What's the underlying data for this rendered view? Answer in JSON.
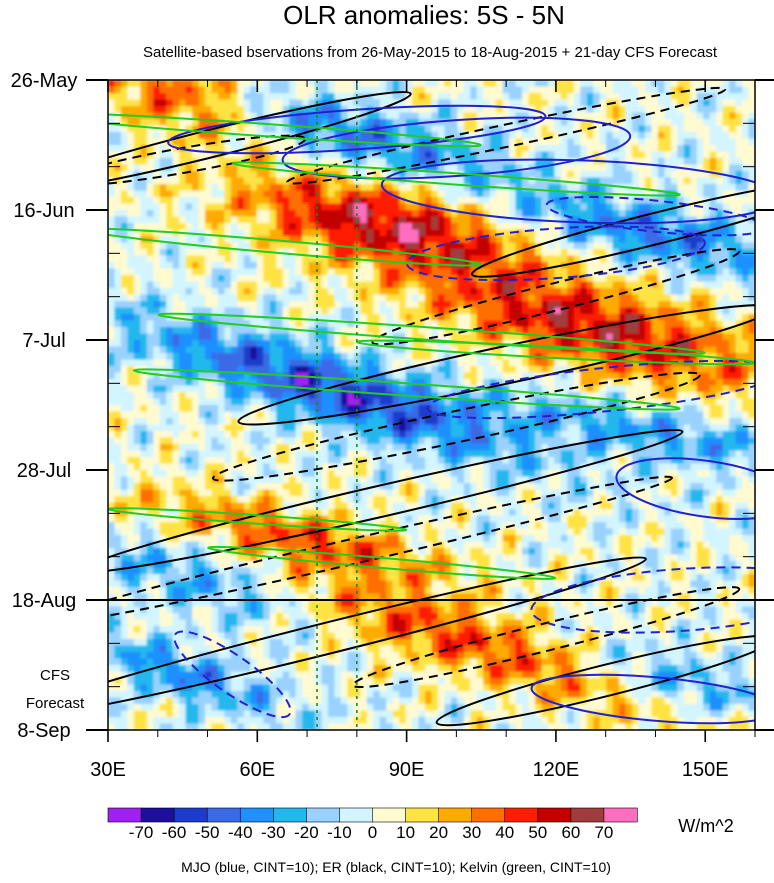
{
  "chart_data": {
    "type": "heatmap",
    "title": "OLR anomalies: 5S - 5N",
    "subtitle": "Satellite-based bservations from 26-May-2015 to 18-Aug-2015 + 21-day CFS Forecast",
    "x_axis": {
      "range": [
        30,
        160
      ],
      "ticks": [
        30,
        60,
        90,
        120,
        150
      ],
      "tick_labels": [
        "30E",
        "60E",
        "90E",
        "120E",
        "150E"
      ]
    },
    "y_axis": {
      "date_labels": [
        "26-May",
        "16-Jun",
        "7-Jul",
        "28-Jul",
        "18-Aug",
        "8-Sep"
      ],
      "day_offsets": [
        0,
        21,
        42,
        63,
        84,
        105
      ],
      "total_days": 105
    },
    "forecast_label": [
      "CFS",
      "Forecast"
    ],
    "forecast_start_day": 84,
    "reference_longitudes": [
      72,
      80
    ],
    "colorbar": {
      "unit": "W/m^2",
      "levels": [
        -70,
        -60,
        -50,
        -40,
        -30,
        -20,
        -10,
        0,
        10,
        20,
        30,
        40,
        50,
        60,
        70
      ],
      "level_labels": [
        "-70",
        "-60",
        "-50",
        "-40",
        "-30",
        "-20",
        "-10",
        "0",
        "10",
        "20",
        "30",
        "40",
        "50",
        "60",
        "70"
      ],
      "colors": [
        "#a020f0",
        "#1c0f9e",
        "#1e3ccc",
        "#3a6ae6",
        "#1e90ff",
        "#22b8ee",
        "#9ad2ff",
        "#d2f5ff",
        "#fffad0",
        "#ffe342",
        "#ffaa00",
        "#ff6e00",
        "#ff1e00",
        "#c30000",
        "#a03c3c",
        "#ff6ebe"
      ]
    },
    "anomaly_bands": [
      {
        "name": "enh-a",
        "day0": 2,
        "lon0": 45,
        "slope": 0.22,
        "w": 9,
        "hw": 14,
        "v": 55
      },
      {
        "name": "enh-b",
        "day0": 23,
        "lon0": 85,
        "slope": 0.15,
        "w": 9,
        "hw": 20,
        "v": 58
      },
      {
        "name": "enh-c",
        "day0": 40,
        "lon0": 128,
        "slope": 0.2,
        "w": 10,
        "hw": 26,
        "v": 55
      },
      {
        "name": "enh-d",
        "day0": 74,
        "lon0": 70,
        "slope": 0.2,
        "w": 6,
        "hw": 22,
        "v": 38
      },
      {
        "name": "enh-e",
        "day0": 90,
        "lon0": 100,
        "slope": 0.25,
        "w": 8,
        "hw": 40,
        "v": 42
      },
      {
        "name": "sup-a",
        "day0": 8,
        "lon0": 75,
        "slope": 0.2,
        "w": 7,
        "hw": 25,
        "v": -42
      },
      {
        "name": "sup-b",
        "day0": 25,
        "lon0": 140,
        "slope": 0.15,
        "w": 7,
        "hw": 20,
        "v": -40
      },
      {
        "name": "sup-c",
        "day0": 50,
        "lon0": 75,
        "slope": 0.25,
        "w": 8,
        "hw": 28,
        "v": -55
      },
      {
        "name": "sup-d",
        "day0": 57,
        "lon0": 140,
        "slope": 0.15,
        "w": 6,
        "hw": 25,
        "v": -30
      },
      {
        "name": "sup-e",
        "day0": 80,
        "lon0": 50,
        "slope": 0.2,
        "w": 8,
        "hw": 18,
        "v": -38
      },
      {
        "name": "sup-f",
        "day0": 96,
        "lon0": 45,
        "slope": 0.25,
        "w": 6,
        "hw": 15,
        "v": -35
      },
      {
        "name": "sup-g",
        "day0": 98,
        "lon0": 145,
        "slope": 0.2,
        "w": 7,
        "hw": 15,
        "v": -35
      }
    ],
    "contour_legend": "MJO (blue, CINT=10); ER (black, CINT=10); Kelvin (green, CINT=10)",
    "contours": {
      "mjo": {
        "color": "#2222cc",
        "loops": [
          {
            "lon": 80,
            "day": 8,
            "rx": 38,
            "ry": 3.2,
            "tilt": -4,
            "dash": false
          },
          {
            "lon": 100,
            "day": 11,
            "rx": 35,
            "ry": 4.5,
            "tilt": -4,
            "dash": false
          },
          {
            "lon": 125,
            "day": 18,
            "rx": 40,
            "ry": 5,
            "tilt": 2,
            "dash": false
          },
          {
            "lon": 120,
            "day": 28,
            "rx": 30,
            "ry": 4,
            "tilt": -4,
            "dash": true
          },
          {
            "lon": 140,
            "day": 22,
            "rx": 22,
            "ry": 2.5,
            "tilt": 6,
            "dash": true
          },
          {
            "lon": 130,
            "day": 50,
            "rx": 36,
            "ry": 3.5,
            "tilt": -6,
            "dash": true
          },
          {
            "lon": 150,
            "day": 66,
            "rx": 18,
            "ry": 4.5,
            "tilt": 8,
            "dash": false
          },
          {
            "lon": 145,
            "day": 84,
            "rx": 30,
            "ry": 5,
            "tilt": -4,
            "dash": true
          },
          {
            "lon": 140,
            "day": 100,
            "rx": 25,
            "ry": 3.5,
            "tilt": 5,
            "dash": false
          },
          {
            "lon": 55,
            "day": 96,
            "rx": 14,
            "ry": 3,
            "tilt": 35,
            "dash": true
          }
        ]
      },
      "er": {
        "color": "#000000",
        "loops": [
          {
            "lon": 52,
            "day": 10,
            "rx": 40,
            "ry": 2.2,
            "tilt": -14,
            "dash": false
          },
          {
            "lon": 45,
            "day": 13,
            "rx": 25,
            "ry": 2,
            "tilt": -10,
            "dash": true
          },
          {
            "lon": 110,
            "day": 9,
            "rx": 45,
            "ry": 1.8,
            "tilt": -12,
            "dash": true
          },
          {
            "lon": 140,
            "day": 24,
            "rx": 38,
            "ry": 2.5,
            "tilt": -14,
            "dash": false
          },
          {
            "lon": 120,
            "day": 35,
            "rx": 38,
            "ry": 2.2,
            "tilt": -14,
            "dash": true
          },
          {
            "lon": 110,
            "day": 46,
            "rx": 55,
            "ry": 3,
            "tilt": -12,
            "dash": false
          },
          {
            "lon": 100,
            "day": 56,
            "rx": 50,
            "ry": 2.5,
            "tilt": -12,
            "dash": true
          },
          {
            "lon": 85,
            "day": 68,
            "rx": 62,
            "ry": 2.5,
            "tilt": -13,
            "dash": false
          },
          {
            "lon": 80,
            "day": 76,
            "rx": 65,
            "ry": 2,
            "tilt": -13,
            "dash": true
          },
          {
            "lon": 75,
            "day": 90,
            "rx": 65,
            "ry": 2.5,
            "tilt": -14,
            "dash": false
          },
          {
            "lon": 118,
            "day": 90,
            "rx": 40,
            "ry": 2.2,
            "tilt": -14,
            "dash": true
          },
          {
            "lon": 130,
            "day": 97,
            "rx": 35,
            "ry": 2.5,
            "tilt": -14,
            "dash": false
          }
        ]
      },
      "kelvin": {
        "color": "#22cc22",
        "loops": [
          {
            "lon": 60,
            "day": 8,
            "rx": 45,
            "ry": 1.0,
            "tilt": 4,
            "dash": false
          },
          {
            "lon": 100,
            "day": 16,
            "rx": 45,
            "ry": 0.9,
            "tilt": 4,
            "dash": false
          },
          {
            "lon": 65,
            "day": 27,
            "rx": 40,
            "ry": 1.0,
            "tilt": 5,
            "dash": false
          },
          {
            "lon": 95,
            "day": 41,
            "rx": 55,
            "ry": 1.0,
            "tilt": 4,
            "dash": false
          },
          {
            "lon": 90,
            "day": 50,
            "rx": 55,
            "ry": 1.0,
            "tilt": 4,
            "dash": false
          },
          {
            "lon": 120,
            "day": 44,
            "rx": 40,
            "ry": 0.9,
            "tilt": 3,
            "dash": false
          },
          {
            "lon": 85,
            "day": 78,
            "rx": 35,
            "ry": 0.8,
            "tilt": 5,
            "dash": false
          },
          {
            "lon": 60,
            "day": 71,
            "rx": 30,
            "ry": 0.7,
            "tilt": 4,
            "dash": false
          }
        ]
      }
    }
  }
}
